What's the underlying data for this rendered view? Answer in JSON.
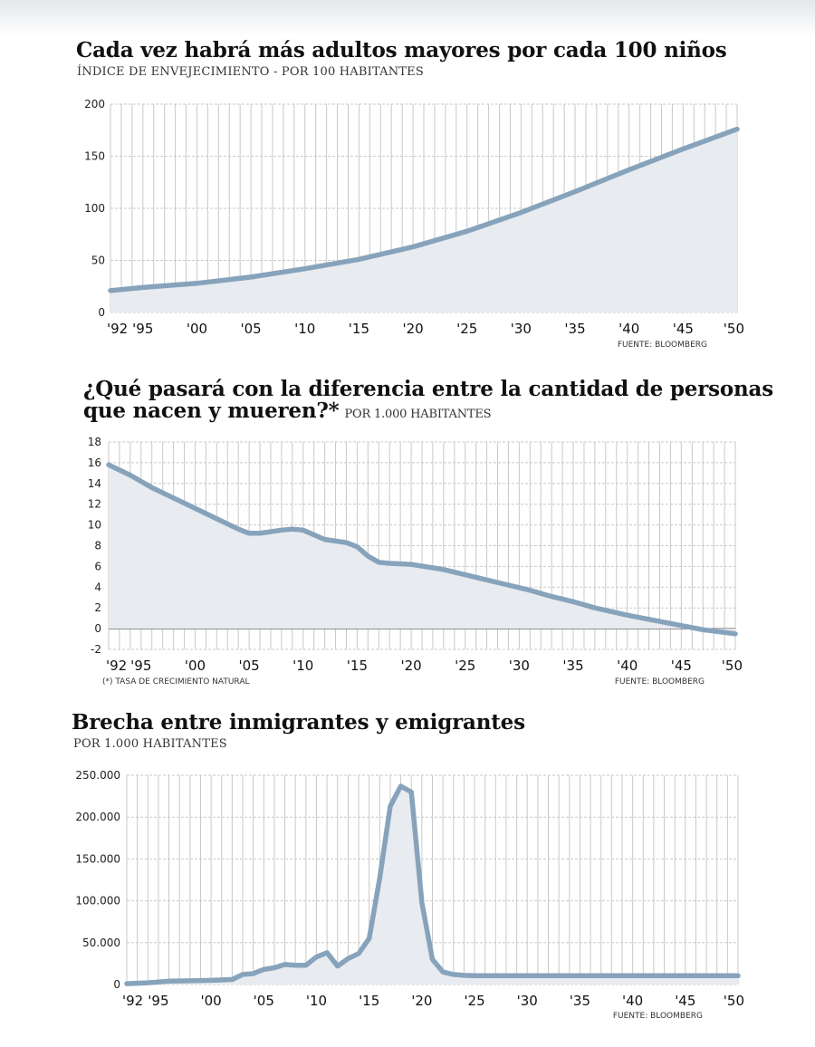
{
  "colors": {
    "line": "#87a3bc",
    "fill": "#e8ebef",
    "grid": "#c9c9c9",
    "zero": "#555555"
  },
  "chart_data": [
    {
      "type": "area",
      "title": "Cada vez habrá más adultos mayores por cada 100 niños",
      "subtitle": "ÍNDICE DE ENVEJECIMIENTO - POR 100 HABITANTES",
      "source": "FUENTE: BLOOMBERG",
      "x_ticks": [
        "'92",
        "'95",
        "'00",
        "'05",
        "'10",
        "'15",
        "'20",
        "'25",
        "'30",
        "'35",
        "'40",
        "'45",
        "'50"
      ],
      "x_tick_years": [
        1992,
        1995,
        2000,
        2005,
        2010,
        2015,
        2020,
        2025,
        2030,
        2035,
        2040,
        2045,
        2050
      ],
      "y_ticks": [
        "0",
        "50",
        "100",
        "150",
        "200"
      ],
      "y_tick_values": [
        0,
        50,
        100,
        150,
        200
      ],
      "ylim": [
        0,
        200
      ],
      "grid": true,
      "x": [
        1992,
        1995,
        2000,
        2005,
        2010,
        2015,
        2020,
        2025,
        2030,
        2035,
        2040,
        2045,
        2050
      ],
      "y": [
        21,
        24,
        28,
        34,
        42,
        51,
        63,
        78,
        96,
        116,
        137,
        157,
        176
      ]
    },
    {
      "type": "area",
      "title_line1": "¿Qué pasará con la diferencia entre la cantidad de personas",
      "title_line2": "que nacen y mueren?*",
      "subtitle": "POR 1.000 HABITANTES",
      "note": "(*) TASA DE CRECIMIENTO NATURAL",
      "source": "FUENTE: BLOOMBERG",
      "x_ticks": [
        "'92",
        "'95",
        "'00",
        "'05",
        "'10",
        "'15",
        "'20",
        "'25",
        "'30",
        "'35",
        "'40",
        "'45",
        "'50"
      ],
      "x_tick_years": [
        1992,
        1995,
        2000,
        2005,
        2010,
        2015,
        2020,
        2025,
        2030,
        2035,
        2040,
        2045,
        2050
      ],
      "y_ticks": [
        "-2",
        "0",
        "2",
        "4",
        "6",
        "8",
        "10",
        "12",
        "14",
        "16",
        "18"
      ],
      "y_tick_values": [
        -2,
        0,
        2,
        4,
        6,
        8,
        10,
        12,
        14,
        16,
        18
      ],
      "ylim": [
        -2,
        18
      ],
      "grid": true,
      "x": [
        1992,
        1994,
        1996,
        1998,
        2000,
        2002,
        2004,
        2005,
        2006,
        2008,
        2009,
        2010,
        2012,
        2014,
        2015,
        2016,
        2017,
        2018,
        2020,
        2023,
        2025,
        2027,
        2029,
        2031,
        2033,
        2035,
        2037,
        2040,
        2043,
        2045,
        2047,
        2050
      ],
      "y": [
        15.8,
        14.8,
        13.6,
        12.6,
        11.6,
        10.6,
        9.6,
        9.2,
        9.2,
        9.5,
        9.6,
        9.5,
        8.6,
        8.3,
        7.9,
        7.0,
        6.4,
        6.3,
        6.2,
        5.7,
        5.2,
        4.7,
        4.2,
        3.7,
        3.1,
        2.6,
        2.0,
        1.3,
        0.7,
        0.3,
        -0.1,
        -0.5
      ]
    },
    {
      "type": "area",
      "title": "Brecha entre inmigrantes y emigrantes",
      "subtitle": "POR 1.000 HABITANTES",
      "source": "FUENTE: BLOOMBERG",
      "x_ticks": [
        "'92",
        "'95",
        "'00",
        "'05",
        "'10",
        "'15",
        "'20",
        "'25",
        "'30",
        "'35",
        "'40",
        "'45",
        "'50"
      ],
      "x_tick_years": [
        1992,
        1995,
        2000,
        2005,
        2010,
        2015,
        2020,
        2025,
        2030,
        2035,
        2040,
        2045,
        2050
      ],
      "y_ticks": [
        "0",
        "50.000",
        "100.000",
        "150.000",
        "200.000",
        "250.000"
      ],
      "y_tick_values": [
        0,
        50000,
        100000,
        150000,
        200000,
        250000
      ],
      "ylim": [
        0,
        250000
      ],
      "grid": true,
      "x": [
        1992,
        1994,
        1996,
        1998,
        2000,
        2002,
        2003,
        2004,
        2005,
        2006,
        2007,
        2008,
        2009,
        2010,
        2011,
        2012,
        2013,
        2014,
        2015,
        2016,
        2017,
        2018,
        2019,
        2020,
        2021,
        2022,
        2023,
        2024,
        2025,
        2030,
        2040,
        2050
      ],
      "y": [
        1000,
        2000,
        4000,
        4500,
        5000,
        6000,
        12000,
        13000,
        18000,
        20000,
        24000,
        23000,
        23000,
        33000,
        38000,
        22000,
        31000,
        37000,
        55000,
        127000,
        213000,
        237000,
        230000,
        98000,
        30000,
        15000,
        12000,
        11000,
        10500,
        10500,
        10500,
        10500
      ]
    }
  ]
}
